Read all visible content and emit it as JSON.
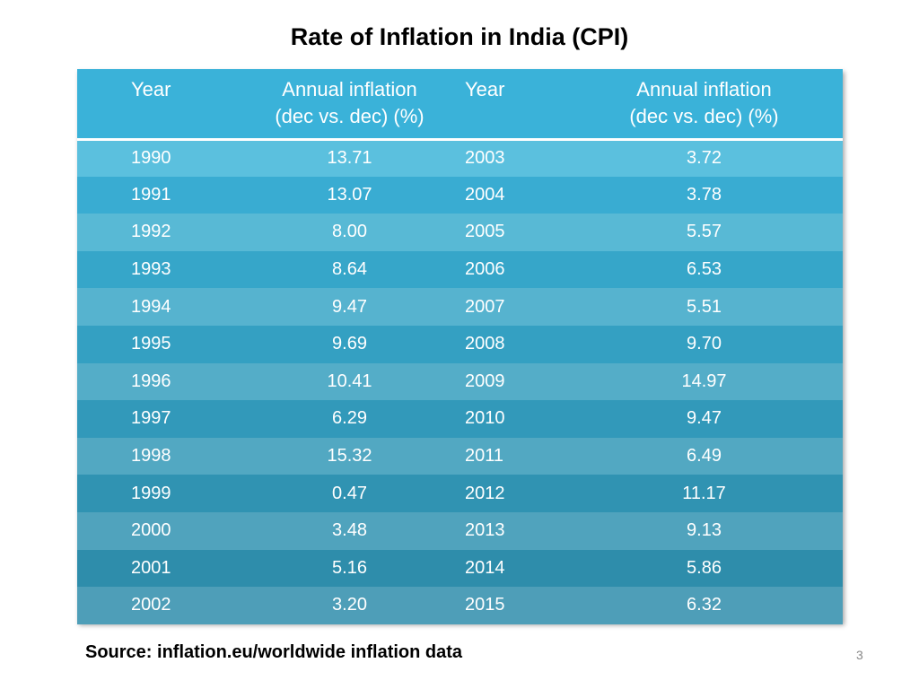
{
  "title": "Rate of Inflation in India (CPI)",
  "table": {
    "headers": {
      "year1": "Year",
      "inflation1_line1": "Annual inflation",
      "inflation1_line2": "(dec vs. dec) (%)",
      "year2": "Year",
      "inflation2_line1": "Annual inflation",
      "inflation2_line2": "(dec vs. dec) (%)"
    },
    "rows": [
      {
        "y1": "1990",
        "v1": "13.71",
        "y2": "2003",
        "v2": "3.72"
      },
      {
        "y1": "1991",
        "v1": "13.07",
        "y2": "2004",
        "v2": "3.78"
      },
      {
        "y1": "1992",
        "v1": "8.00",
        "y2": "2005",
        "v2": "5.57"
      },
      {
        "y1": "1993",
        "v1": "8.64",
        "y2": "2006",
        "v2": "6.53"
      },
      {
        "y1": "1994",
        "v1": "9.47",
        "y2": "2007",
        "v2": "5.51"
      },
      {
        "y1": "1995",
        "v1": "9.69",
        "y2": "2008",
        "v2": "9.70"
      },
      {
        "y1": "1996",
        "v1": "10.41",
        "y2": "2009",
        "v2": "14.97"
      },
      {
        "y1": "1997",
        "v1": "6.29",
        "y2": "2010",
        "v2": "9.47"
      },
      {
        "y1": "1998",
        "v1": "15.32",
        "y2": "2011",
        "v2": "6.49"
      },
      {
        "y1": "1999",
        "v1": "0.47",
        "y2": "2012",
        "v2": "11.17"
      },
      {
        "y1": "2000",
        "v1": "3.48",
        "y2": "2013",
        "v2": "9.13"
      },
      {
        "y1": "2001",
        "v1": "5.16",
        "y2": "2014",
        "v2": "5.86"
      },
      {
        "y1": "2002",
        "v1": "3.20",
        "y2": "2015",
        "v2": "6.32"
      }
    ]
  },
  "source": "Source: inflation.eu/worldwide inflation data",
  "page_number": "3",
  "colors": {
    "header": "#3ab2d9",
    "text": "#ffffff"
  }
}
